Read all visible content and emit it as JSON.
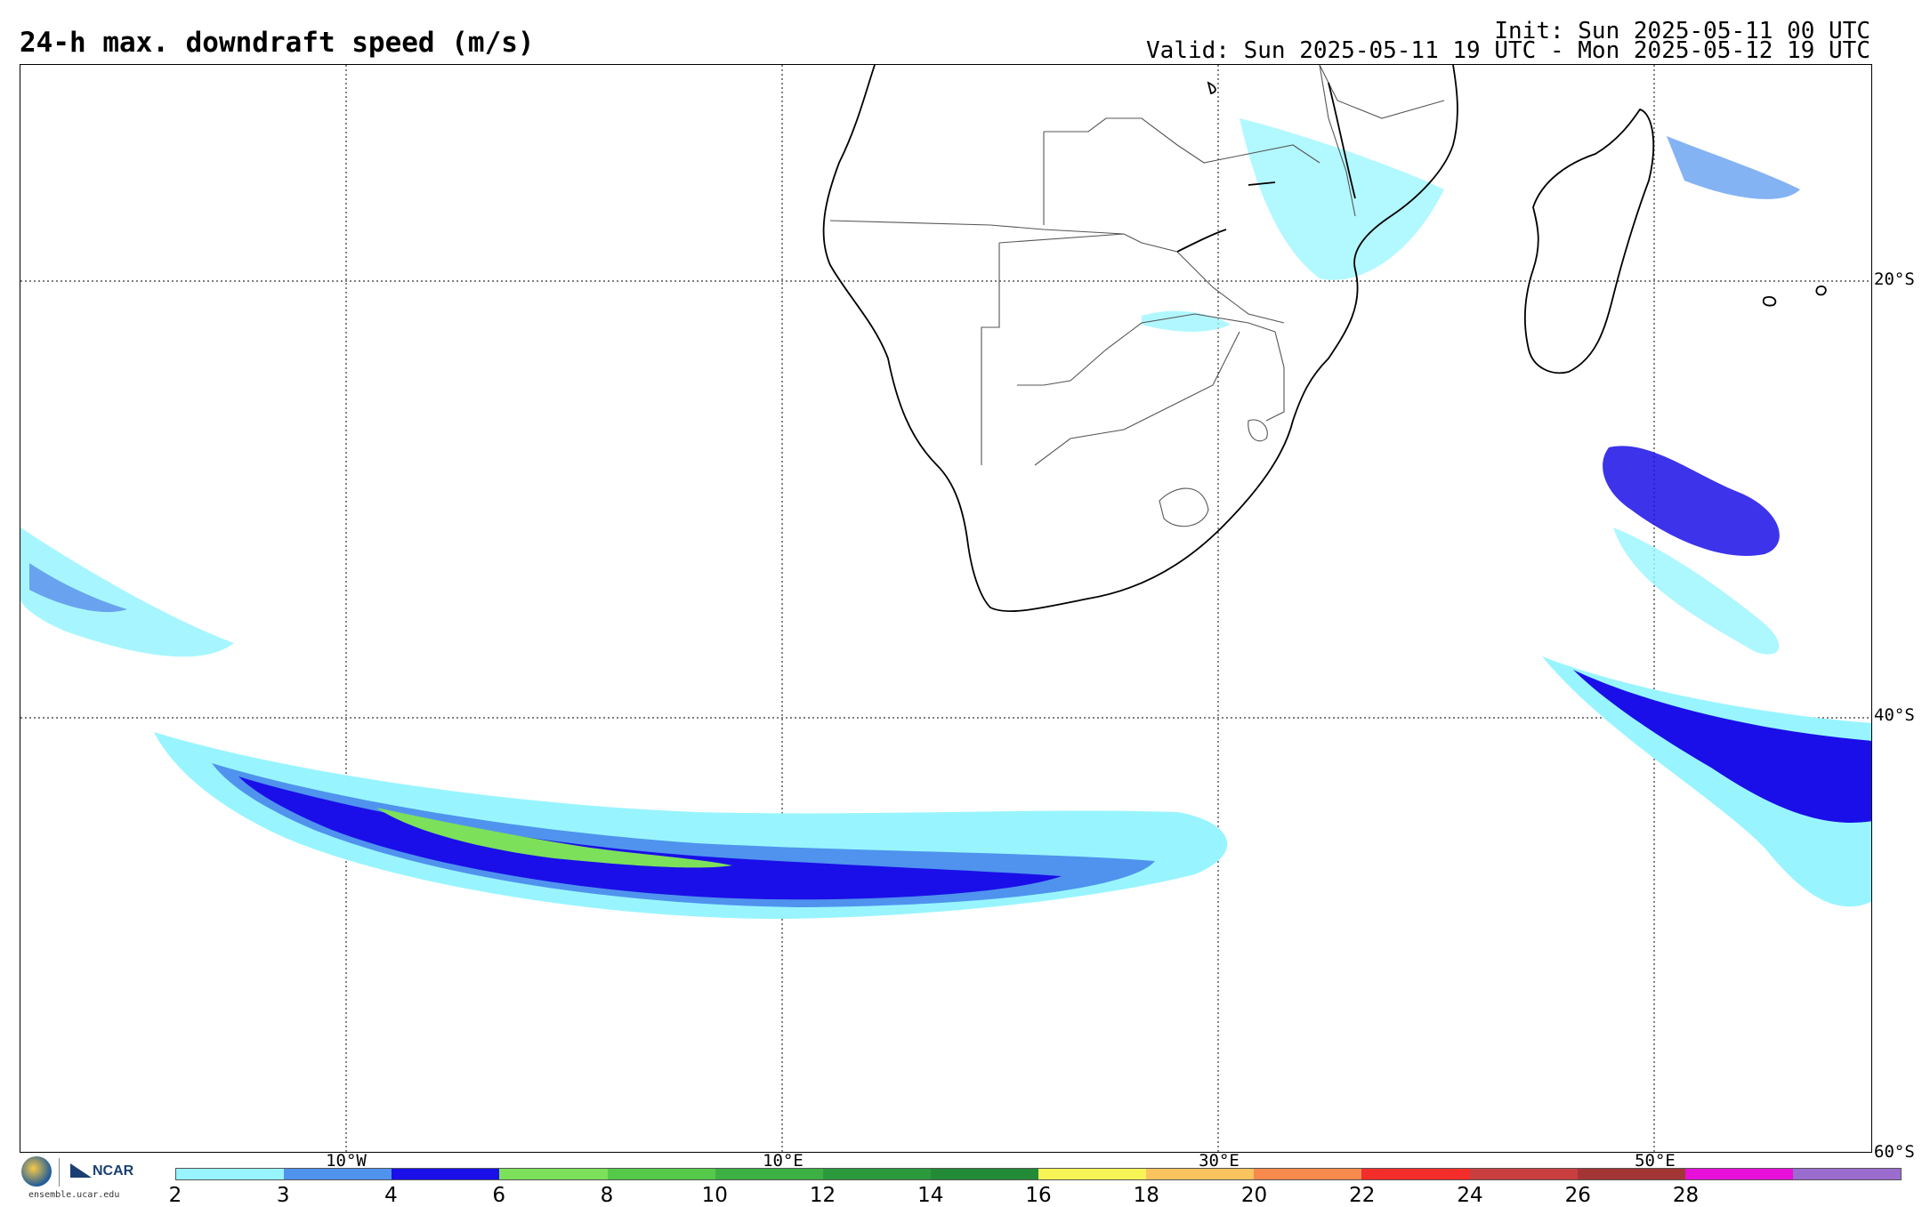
{
  "header": {
    "title": "24-h max. downdraft speed (m/s)",
    "init": "Init: Sun 2025-05-11 00 UTC",
    "valid": "Valid: Sun 2025-05-11 19 UTC - Mon 2025-05-12 19 UTC"
  },
  "map": {
    "lat_labels": [
      "20°S",
      "40°S",
      "60°S"
    ],
    "lon_labels": [
      "10°W",
      "10°E",
      "30°E",
      "50°E"
    ],
    "region": "southern Africa / South Atlantic / SW Indian Ocean"
  },
  "colorbar": {
    "ticks": [
      "2",
      "3",
      "4",
      "6",
      "8",
      "10",
      "12",
      "14",
      "16",
      "18",
      "20",
      "22",
      "24",
      "26",
      "28"
    ],
    "colors": [
      "#98f5ff",
      "#4f93ee",
      "#1a0fe8",
      "#7de05a",
      "#55c94a",
      "#3db043",
      "#2b9a3c",
      "#238a38",
      "#f9f455",
      "#fcc35e",
      "#f88a4e",
      "#f22d2a",
      "#c93f3f",
      "#a33535",
      "#e610d9",
      "#9a6ccd"
    ]
  },
  "logos": {
    "nsf": "NSF",
    "ncar": "NCAR",
    "site": "ensemble.ucar.edu"
  }
}
